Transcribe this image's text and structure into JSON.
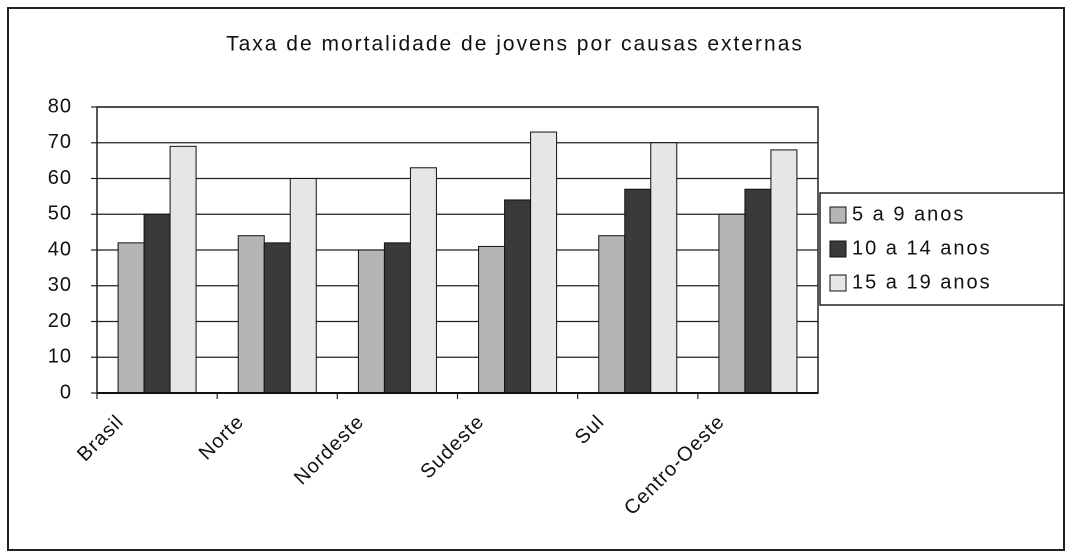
{
  "chart_data": {
    "type": "bar",
    "title": "Taxa de mortalidade de jovens por causas externas",
    "categories": [
      "Brasil",
      "Norte",
      "Nordeste",
      "Sudeste",
      "Sul",
      "Centro-Oeste"
    ],
    "series": [
      {
        "name": "5 a 9 anos",
        "color": "#b5b5b5",
        "values": [
          42,
          44,
          40,
          41,
          44,
          50
        ]
      },
      {
        "name": "10 a 14 anos",
        "color": "#3a3a3a",
        "values": [
          50,
          42,
          42,
          54,
          57,
          57
        ]
      },
      {
        "name": "15 a 19 anos",
        "color": "#e6e6e6",
        "values": [
          69,
          60,
          63,
          73,
          70,
          68
        ]
      }
    ],
    "ylim": [
      0,
      80
    ],
    "yticks": [
      0,
      10,
      20,
      30,
      40,
      50,
      60,
      70,
      80
    ],
    "grid": true,
    "legend": "right"
  }
}
